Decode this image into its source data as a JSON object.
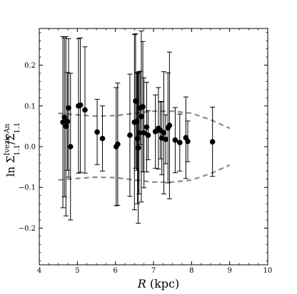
{
  "chart_data": {
    "type": "scatter",
    "title": "",
    "xlabel": "R (kpc)",
    "ylabel": "ln Σ^Ivezic_1.1 / Σ^An_1.1",
    "xlim": [
      4,
      10
    ],
    "ylim": [
      -0.29,
      0.29
    ],
    "xticks": [
      4,
      5,
      6,
      7,
      8,
      9,
      10
    ],
    "xtick_labels": [
      "4",
      "5",
      "6",
      "7",
      "8",
      "9",
      "10"
    ],
    "yticks": [
      -0.2,
      -0.1,
      0.0,
      0.1,
      0.2
    ],
    "ytick_labels": [
      "−0.2",
      "−0.1",
      "0.0",
      "0.1",
      "0.2"
    ],
    "grid": false,
    "points": [
      {
        "x": 4.62,
        "y": 0.06,
        "lo": 0.21,
        "hi": 0.21
      },
      {
        "x": 4.66,
        "y": 0.072,
        "lo": 0.195,
        "hi": 0.195
      },
      {
        "x": 4.7,
        "y": 0.05,
        "lo": 0.22,
        "hi": 0.22
      },
      {
        "x": 4.74,
        "y": 0.062,
        "lo": 0.12,
        "hi": 0.12
      },
      {
        "x": 4.77,
        "y": 0.095,
        "lo": 0.17,
        "hi": 0.17
      },
      {
        "x": 4.82,
        "y": 0.0,
        "lo": 0.18,
        "hi": 0.18
      },
      {
        "x": 5.03,
        "y": 0.1,
        "lo": 0.165,
        "hi": 0.165
      },
      {
        "x": 5.08,
        "y": 0.102,
        "lo": 0.165,
        "hi": 0.165
      },
      {
        "x": 5.2,
        "y": 0.09,
        "lo": 0.155,
        "hi": 0.155
      },
      {
        "x": 5.52,
        "y": 0.036,
        "lo": 0.08,
        "hi": 0.08
      },
      {
        "x": 5.66,
        "y": 0.02,
        "lo": 0.08,
        "hi": 0.08
      },
      {
        "x": 6.02,
        "y": 0.0,
        "lo": 0.145,
        "hi": 0.145
      },
      {
        "x": 6.06,
        "y": 0.006,
        "lo": 0.15,
        "hi": 0.15
      },
      {
        "x": 6.38,
        "y": 0.028,
        "lo": 0.15,
        "hi": 0.15
      },
      {
        "x": 6.5,
        "y": 0.06,
        "lo": 0.215,
        "hi": 0.215
      },
      {
        "x": 6.53,
        "y": 0.112,
        "lo": 0.165,
        "hi": 0.165
      },
      {
        "x": 6.56,
        "y": 0.062,
        "lo": 0.12,
        "hi": 0.12
      },
      {
        "x": 6.58,
        "y": 0.02,
        "lo": 0.16,
        "hi": 0.16
      },
      {
        "x": 6.6,
        "y": -0.003,
        "lo": 0.185,
        "hi": 0.185
      },
      {
        "x": 6.62,
        "y": 0.034,
        "lo": 0.15,
        "hi": 0.15
      },
      {
        "x": 6.65,
        "y": 0.095,
        "lo": 0.09,
        "hi": 0.09
      },
      {
        "x": 6.68,
        "y": 0.074,
        "lo": 0.21,
        "hi": 0.21
      },
      {
        "x": 6.72,
        "y": 0.098,
        "lo": 0.16,
        "hi": 0.16
      },
      {
        "x": 6.75,
        "y": 0.034,
        "lo": 0.135,
        "hi": 0.135
      },
      {
        "x": 6.82,
        "y": 0.048,
        "lo": 0.11,
        "hi": 0.11
      },
      {
        "x": 6.86,
        "y": 0.028,
        "lo": 0.06,
        "hi": 0.06
      },
      {
        "x": 7.05,
        "y": 0.037,
        "lo": 0.09,
        "hi": 0.09
      },
      {
        "x": 7.13,
        "y": 0.045,
        "lo": 0.1,
        "hi": 0.1
      },
      {
        "x": 7.18,
        "y": 0.04,
        "lo": 0.07,
        "hi": 0.07
      },
      {
        "x": 7.22,
        "y": 0.021,
        "lo": 0.09,
        "hi": 0.09
      },
      {
        "x": 7.27,
        "y": 0.034,
        "lo": 0.15,
        "hi": 0.15
      },
      {
        "x": 7.32,
        "y": 0.018,
        "lo": 0.06,
        "hi": 0.06
      },
      {
        "x": 7.38,
        "y": 0.046,
        "lo": 0.135,
        "hi": 0.135
      },
      {
        "x": 7.42,
        "y": 0.052,
        "lo": 0.18,
        "hi": 0.18
      },
      {
        "x": 7.57,
        "y": 0.016,
        "lo": 0.08,
        "hi": 0.08
      },
      {
        "x": 7.69,
        "y": 0.01,
        "lo": 0.07,
        "hi": 0.07
      },
      {
        "x": 7.85,
        "y": 0.022,
        "lo": 0.1,
        "hi": 0.1
      },
      {
        "x": 7.9,
        "y": 0.013,
        "lo": 0.05,
        "hi": 0.05
      },
      {
        "x": 8.55,
        "y": 0.012,
        "lo": 0.085,
        "hi": 0.085
      }
    ],
    "envelope": {
      "x": [
        4.5,
        5.0,
        5.5,
        6.0,
        6.5,
        7.0,
        7.5,
        8.0,
        8.5,
        9.0
      ],
      "upper": [
        0.082,
        0.078,
        0.075,
        0.076,
        0.082,
        0.087,
        0.087,
        0.082,
        0.066,
        0.045
      ],
      "lower": [
        -0.082,
        -0.078,
        -0.075,
        -0.076,
        -0.082,
        -0.087,
        -0.087,
        -0.082,
        -0.066,
        -0.045
      ]
    }
  }
}
